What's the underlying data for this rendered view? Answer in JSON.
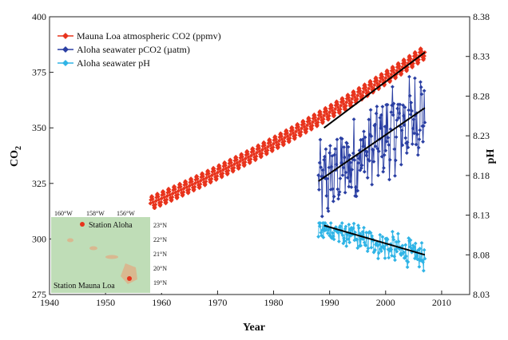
{
  "chart_data": {
    "type": "line",
    "title": "",
    "xlabel": "Year",
    "ylabel_left": "CO",
    "ylabel_left_sub": "2",
    "ylabel_right": "pH",
    "xlim": [
      1940,
      2015
    ],
    "ylim_left": [
      275,
      400
    ],
    "ylim_right": [
      8.03,
      8.38
    ],
    "x_ticks": [
      1940,
      1950,
      1960,
      1970,
      1980,
      1990,
      2000,
      2010
    ],
    "y_left_ticks": [
      275,
      300,
      325,
      350,
      375,
      400
    ],
    "y_right_ticks": [
      "8.03",
      "8.08",
      "8.13",
      "8.18",
      "8.23",
      "8.28",
      "8.33",
      "8.38"
    ],
    "grid": false,
    "legend_position": "top-left",
    "series": [
      {
        "name": "Mauna Loa atmospheric CO2 (ppmv)",
        "color": "#e8331c",
        "marker": "diamond",
        "axis": "left",
        "x_start": 1958,
        "x_end": 2007,
        "trend_y": [
          316,
          384
        ],
        "seasonal_amplitude": 3,
        "fit_line": {
          "x": [
            1989,
            2007
          ],
          "y": [
            350,
            384
          ]
        }
      },
      {
        "name": "Aloha seawater pCO2 (µatm)",
        "color": "#2a3fa3",
        "marker": "diamond",
        "axis": "left",
        "x_start": 1988,
        "x_end": 2007,
        "y_range": [
          305,
          377
        ],
        "fit_line": {
          "x": [
            1988,
            2007
          ],
          "y": [
            326,
            359
          ]
        }
      },
      {
        "name": "Aloha seawater pH",
        "color": "#2fb4e6",
        "marker": "diamond",
        "axis": "right",
        "x_start": 1988,
        "x_end": 2007,
        "y_range": [
          8.06,
          8.12
        ],
        "fit_line": {
          "x": [
            1989,
            2007
          ],
          "y": [
            8.117,
            8.08
          ]
        }
      }
    ]
  },
  "inset_map": {
    "longitudes": [
      "160°W",
      "158°W",
      "156°W"
    ],
    "latitudes": [
      "23°N",
      "22°N",
      "21°N",
      "20°N",
      "19°N"
    ],
    "station_aloha_label": "Station Aloha",
    "station_mauna_loa_label": "Station Mauna Loa",
    "land_color": "#d9b890",
    "sea_color": "#bfddb7"
  }
}
